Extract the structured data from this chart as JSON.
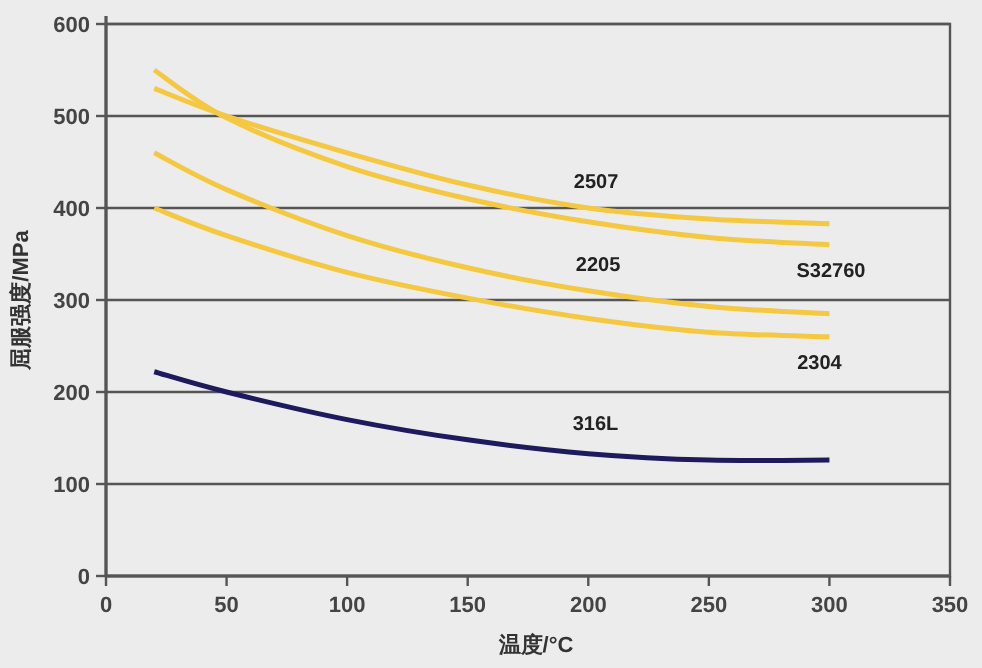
{
  "chart_data": {
    "type": "line",
    "xlabel": "温度/°C",
    "ylabel": "屈服强度/MPa",
    "x": [
      20,
      50,
      100,
      150,
      200,
      250,
      300
    ],
    "series": [
      {
        "name": "2507",
        "color": "#f5c842",
        "values": [
          530,
          500,
          460,
          425,
          400,
          388,
          383
        ]
      },
      {
        "name": "S32760",
        "color": "#f5c842",
        "values": [
          550,
          498,
          445,
          410,
          385,
          368,
          360
        ]
      },
      {
        "name": "2205",
        "color": "#f5c842",
        "values": [
          460,
          420,
          370,
          335,
          310,
          293,
          285
        ]
      },
      {
        "name": "2304",
        "color": "#f5c842",
        "values": [
          400,
          370,
          330,
          302,
          280,
          265,
          260
        ]
      },
      {
        "name": "316L",
        "color": "#1e1a5e",
        "values": [
          222,
          200,
          170,
          148,
          133,
          126,
          126
        ]
      }
    ],
    "xlim": [
      0,
      350
    ],
    "xticks": [
      0,
      50,
      100,
      150,
      200,
      250,
      300,
      350
    ],
    "ylim": [
      0,
      600
    ],
    "yticks": [
      0,
      100,
      200,
      300,
      400,
      500,
      600
    ],
    "grid": "y",
    "legend": false,
    "marker": "none",
    "line_style": "solid"
  }
}
